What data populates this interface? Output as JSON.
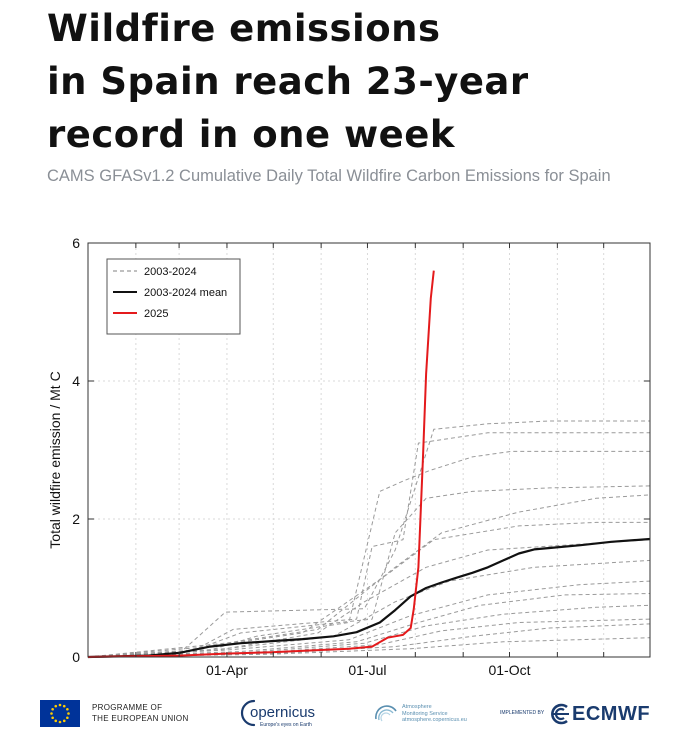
{
  "headline": {
    "lines": [
      "Wildfire emissions",
      "in Spain reach 23-year",
      "record in one week"
    ]
  },
  "subtitle": "CAMS GFASv1.2 Cumulative Daily Total Wildfire Carbon Emissions for Spain",
  "footer": {
    "eu_label_line1": "PROGRAMME OF",
    "eu_label_line2": "THE EUROPEAN UNION",
    "copernicus_label": "opernicus",
    "copernicus_tagline": "Europe's eyes on Earth",
    "atmosphere_line1": "Atmosphere",
    "atmosphere_line2": "Monitoring Service",
    "atmosphere_line3": "atmosphere.copernicus.eu",
    "implemented_by": "IMPLEMENTED BY",
    "ecmwf_label": "ECMWF"
  },
  "colors": {
    "history": "#9a9a9a",
    "mean": "#111111",
    "current": "#e41a1c",
    "grid": "#d9d9d9",
    "eu_blue": "#003399",
    "eu_star": "#ffcc00",
    "brand_navy": "#1a3b6e"
  },
  "chart_data": {
    "type": "line",
    "title": "",
    "xlabel": "",
    "ylabel": "Total wildfire emission / Mt C",
    "xlim": [
      1,
      365
    ],
    "ylim": [
      0,
      6
    ],
    "x_ticks": [
      {
        "label": "01-Apr",
        "day": 91
      },
      {
        "label": "01-Jul",
        "day": 182
      },
      {
        "label": "01-Oct",
        "day": 274
      }
    ],
    "x_minor_days": [
      32,
      60,
      121,
      152,
      213,
      244,
      305,
      335
    ],
    "y_ticks": [
      0,
      2,
      4,
      6
    ],
    "grid": true,
    "legend_position": "top-left",
    "series": [
      {
        "name": "2003-2024",
        "style": "dashed",
        "color": "#9a9a9a",
        "x": [
          1,
          60,
          75,
          90,
          180,
          200,
          225,
          260,
          300,
          365
        ],
        "y": [
          0,
          0.05,
          0.35,
          0.65,
          0.7,
          1.55,
          3.3,
          3.38,
          3.42,
          3.42
        ]
      },
      {
        "name": "",
        "style": "dashed",
        "color": "#9a9a9a",
        "x": [
          1,
          70,
          95,
          175,
          185,
          205,
          215,
          260,
          290,
          365
        ],
        "y": [
          0,
          0.1,
          0.4,
          0.55,
          1.6,
          1.7,
          3.1,
          3.25,
          3.25,
          3.25
        ]
      },
      {
        "name": "",
        "style": "dashed",
        "color": "#9a9a9a",
        "x": [
          1,
          80,
          110,
          170,
          190,
          205,
          222,
          250,
          275,
          365
        ],
        "y": [
          0,
          0.1,
          0.3,
          0.5,
          2.4,
          2.55,
          2.7,
          2.9,
          2.98,
          2.98
        ]
      },
      {
        "name": "",
        "style": "dashed",
        "color": "#9a9a9a",
        "x": [
          1,
          70,
          100,
          185,
          200,
          220,
          250,
          300,
          365
        ],
        "y": [
          0,
          0.1,
          0.35,
          0.55,
          1.8,
          2.3,
          2.4,
          2.45,
          2.48
        ]
      },
      {
        "name": "",
        "style": "dashed",
        "color": "#9a9a9a",
        "x": [
          1,
          90,
          150,
          200,
          230,
          280,
          330,
          365
        ],
        "y": [
          0,
          0.2,
          0.4,
          1.3,
          1.8,
          2.1,
          2.3,
          2.35
        ]
      },
      {
        "name": "",
        "style": "dashed",
        "color": "#9a9a9a",
        "x": [
          1,
          80,
          140,
          195,
          225,
          280,
          330,
          365
        ],
        "y": [
          0,
          0.15,
          0.35,
          1.2,
          1.7,
          1.9,
          1.95,
          1.95
        ]
      },
      {
        "name": "",
        "style": "dashed",
        "color": "#9a9a9a",
        "x": [
          1,
          85,
          150,
          180,
          220,
          260,
          330,
          365
        ],
        "y": [
          0,
          0.1,
          0.35,
          0.8,
          1.3,
          1.55,
          1.65,
          1.7
        ]
      },
      {
        "name": "",
        "style": "dashed",
        "color": "#9a9a9a",
        "x": [
          1,
          90,
          160,
          200,
          235,
          290,
          365
        ],
        "y": [
          0,
          0.12,
          0.3,
          0.8,
          1.1,
          1.3,
          1.4
        ]
      },
      {
        "name": "",
        "style": "dashed",
        "color": "#9a9a9a",
        "x": [
          1,
          90,
          170,
          210,
          260,
          320,
          365
        ],
        "y": [
          0,
          0.1,
          0.25,
          0.6,
          0.9,
          1.05,
          1.1
        ]
      },
      {
        "name": "",
        "style": "dashed",
        "color": "#9a9a9a",
        "x": [
          1,
          100,
          175,
          215,
          255,
          310,
          365
        ],
        "y": [
          0,
          0.08,
          0.22,
          0.5,
          0.75,
          0.9,
          0.92
        ]
      },
      {
        "name": "",
        "style": "dashed",
        "color": "#9a9a9a",
        "x": [
          1,
          100,
          180,
          220,
          270,
          330,
          365
        ],
        "y": [
          0,
          0.06,
          0.2,
          0.45,
          0.62,
          0.72,
          0.75
        ]
      },
      {
        "name": "",
        "style": "dashed",
        "color": "#9a9a9a",
        "x": [
          1,
          110,
          190,
          230,
          280,
          365
        ],
        "y": [
          0,
          0.06,
          0.18,
          0.38,
          0.5,
          0.55
        ]
      },
      {
        "name": "",
        "style": "dashed",
        "color": "#9a9a9a",
        "x": [
          1,
          120,
          200,
          250,
          300,
          365
        ],
        "y": [
          0,
          0.05,
          0.15,
          0.3,
          0.42,
          0.48
        ]
      },
      {
        "name": "",
        "style": "dashed",
        "color": "#9a9a9a",
        "x": [
          1,
          120,
          210,
          270,
          365
        ],
        "y": [
          0,
          0.04,
          0.12,
          0.22,
          0.28
        ]
      },
      {
        "name": "2003-2024 mean",
        "style": "solid",
        "color": "#111111",
        "x": [
          1,
          40,
          60,
          80,
          100,
          120,
          140,
          160,
          175,
          190,
          200,
          210,
          220,
          230,
          240,
          250,
          260,
          270,
          280,
          290,
          300,
          320,
          340,
          365
        ],
        "y": [
          0,
          0.02,
          0.06,
          0.15,
          0.2,
          0.23,
          0.26,
          0.3,
          0.36,
          0.5,
          0.68,
          0.88,
          1.0,
          1.08,
          1.15,
          1.22,
          1.3,
          1.4,
          1.5,
          1.56,
          1.58,
          1.62,
          1.67,
          1.71
        ]
      },
      {
        "name": "2025",
        "style": "solid",
        "color": "#e41a1c",
        "x": [
          1,
          60,
          90,
          120,
          150,
          170,
          185,
          195,
          200,
          205,
          210,
          212,
          215,
          218,
          220,
          223,
          225
        ],
        "y": [
          0,
          0.02,
          0.05,
          0.07,
          0.1,
          0.12,
          0.15,
          0.28,
          0.3,
          0.32,
          0.42,
          0.7,
          1.3,
          2.9,
          4.1,
          5.2,
          5.6
        ]
      }
    ]
  }
}
